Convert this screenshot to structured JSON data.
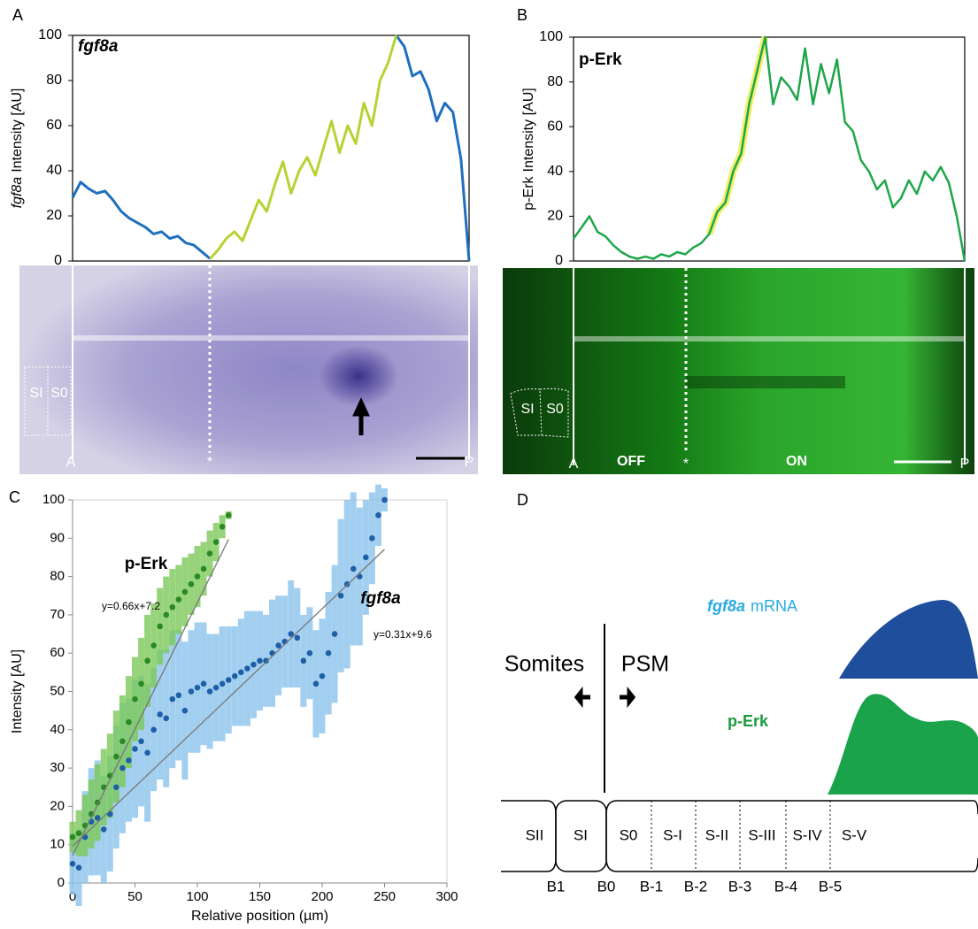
{
  "panels": [
    "A",
    "B",
    "C",
    "D"
  ],
  "chart_data": [
    {
      "type": "line",
      "title": "fgf8a",
      "ylabel": [
        "fgf8a",
        "Intensity [AU]"
      ],
      "ylim": [
        0,
        100
      ],
      "yticks": [
        0,
        20,
        40,
        60,
        80,
        100
      ],
      "series": [
        {
          "color": "#1f6fbf",
          "values": [
            28,
            35,
            32,
            30,
            31,
            27,
            22,
            19,
            17,
            15,
            12,
            13,
            10,
            11,
            8,
            7,
            4,
            1,
            null,
            null,
            null,
            null,
            null,
            null,
            null,
            null,
            null,
            null,
            null,
            null,
            null,
            null,
            null,
            null,
            null,
            null,
            null,
            null,
            null,
            null,
            100,
            95,
            82,
            84,
            76,
            62,
            70,
            66,
            45,
            0
          ]
        },
        {
          "color": "#b5d334",
          "values": [
            null,
            null,
            null,
            null,
            null,
            null,
            null,
            null,
            null,
            null,
            null,
            null,
            null,
            null,
            null,
            null,
            null,
            1,
            5,
            10,
            13,
            9,
            18,
            27,
            22,
            34,
            44,
            30,
            40,
            46,
            38,
            50,
            62,
            48,
            60,
            52,
            70,
            60,
            80,
            88,
            100,
            null,
            null,
            null,
            null,
            null,
            null,
            null,
            null,
            null
          ]
        }
      ]
    },
    {
      "type": "line",
      "title": "p-Erk",
      "ylabel": [
        "p-Erk",
        "Intensity [AU]"
      ],
      "ylim": [
        0,
        100
      ],
      "yticks": [
        0,
        20,
        40,
        60,
        80,
        100
      ],
      "series": [
        {
          "color": "#f2ef6b",
          "width": 8,
          "values": [
            null,
            null,
            null,
            null,
            null,
            null,
            null,
            null,
            null,
            null,
            null,
            null,
            null,
            null,
            null,
            null,
            null,
            12,
            22,
            26,
            40,
            48,
            70,
            85,
            100,
            null,
            null,
            null,
            null,
            null,
            null,
            null,
            null,
            null,
            null,
            null,
            null,
            null,
            null,
            null,
            null,
            null,
            null,
            null,
            null,
            null,
            null,
            null,
            null,
            null
          ]
        },
        {
          "color": "#1ea64a",
          "width": 2.5,
          "values": [
            10,
            15,
            20,
            13,
            11,
            7,
            4,
            2,
            1,
            2,
            1,
            3,
            2,
            4,
            3,
            6,
            8,
            12,
            22,
            26,
            40,
            48,
            70,
            85,
            100,
            70,
            82,
            78,
            72,
            95,
            70,
            88,
            75,
            90,
            62,
            58,
            45,
            40,
            32,
            36,
            24,
            28,
            36,
            30,
            40,
            36,
            42,
            35,
            20,
            0
          ]
        }
      ]
    },
    {
      "type": "scatter",
      "xlabel": "Relative position (µm)",
      "ylabel": "Intensity [AU]",
      "xlim": [
        0,
        300
      ],
      "xticks": [
        0,
        50,
        100,
        150,
        200,
        250,
        300
      ],
      "ylim": [
        0,
        100
      ],
      "yticks": [
        0,
        10,
        20,
        30,
        40,
        50,
        60,
        70,
        80,
        90,
        100
      ],
      "series": [
        {
          "name": "fgf8a",
          "color": "#1f5fa8",
          "error_color": "#8cc4ec",
          "x": [
            0,
            5,
            10,
            15,
            20,
            25,
            30,
            35,
            40,
            45,
            50,
            55,
            60,
            65,
            70,
            75,
            80,
            85,
            90,
            95,
            100,
            105,
            110,
            115,
            120,
            125,
            130,
            135,
            140,
            145,
            150,
            155,
            160,
            165,
            170,
            175,
            180,
            185,
            190,
            195,
            200,
            205,
            210,
            215,
            220,
            225,
            230,
            235,
            240,
            245,
            250
          ],
          "values": [
            5,
            4,
            12,
            16,
            17,
            14,
            18,
            25,
            30,
            32,
            35,
            37,
            34,
            40,
            44,
            43,
            48,
            49,
            45,
            50,
            51,
            52,
            50,
            51,
            52,
            53,
            54,
            55,
            56,
            57,
            58,
            58,
            60,
            62,
            63,
            65,
            64,
            58,
            60,
            52,
            54,
            60,
            65,
            75,
            78,
            82,
            80,
            85,
            90,
            96,
            100
          ],
          "errors": [
            8,
            10,
            12,
            14,
            15,
            14,
            15,
            16,
            17,
            16,
            18,
            17,
            18,
            16,
            17,
            18,
            18,
            17,
            18,
            16,
            17,
            16,
            15,
            14,
            15,
            14,
            13,
            14,
            15,
            14,
            13,
            12,
            14,
            13,
            12,
            14,
            13,
            12,
            12,
            14,
            15,
            16,
            18,
            20,
            22,
            20,
            18,
            15,
            12,
            8,
            3
          ],
          "trendline": {
            "slope": 0.31,
            "intercept": 9.6,
            "label": "y=0.31x+9.6"
          }
        },
        {
          "name": "p-Erk",
          "color": "#2a8a22",
          "error_color": "#7cc95a",
          "x": [
            0,
            5,
            10,
            15,
            20,
            25,
            30,
            35,
            40,
            45,
            50,
            55,
            60,
            65,
            70,
            75,
            80,
            85,
            90,
            95,
            100,
            105,
            110,
            115,
            120,
            125
          ],
          "values": [
            12,
            13,
            15,
            18,
            21,
            25,
            28,
            33,
            37,
            42,
            48,
            52,
            58,
            62,
            67,
            70,
            72,
            74,
            76,
            78,
            80,
            82,
            86,
            89,
            93,
            96
          ],
          "errors": [
            4,
            6,
            8,
            9,
            10,
            10,
            11,
            12,
            12,
            12,
            11,
            12,
            12,
            11,
            10,
            10,
            10,
            9,
            9,
            8,
            8,
            7,
            6,
            5,
            3,
            1
          ],
          "trendline": {
            "slope": 0.66,
            "intercept": 7.2,
            "label": "y=0.66x+7.2"
          }
        }
      ]
    }
  ],
  "images": [
    {
      "labels": [
        "SI",
        "S0",
        "A",
        "*",
        "P"
      ]
    },
    {
      "labels": [
        "SI",
        "S0",
        "A",
        "OFF",
        "*",
        "ON",
        "P"
      ]
    }
  ],
  "diagram": {
    "fgf8a_label": [
      "fgf8a",
      "mRNA"
    ],
    "perk_label": "p-Erk",
    "left": "Somites",
    "right": "PSM",
    "segments": [
      "SII",
      "SI",
      "S0",
      "S-I",
      "S-II",
      "S-III",
      "S-IV",
      "S-V"
    ],
    "boundaries": [
      "B1",
      "B0",
      "B-1",
      "B-2",
      "B-3",
      "B-4",
      "B-5"
    ]
  }
}
